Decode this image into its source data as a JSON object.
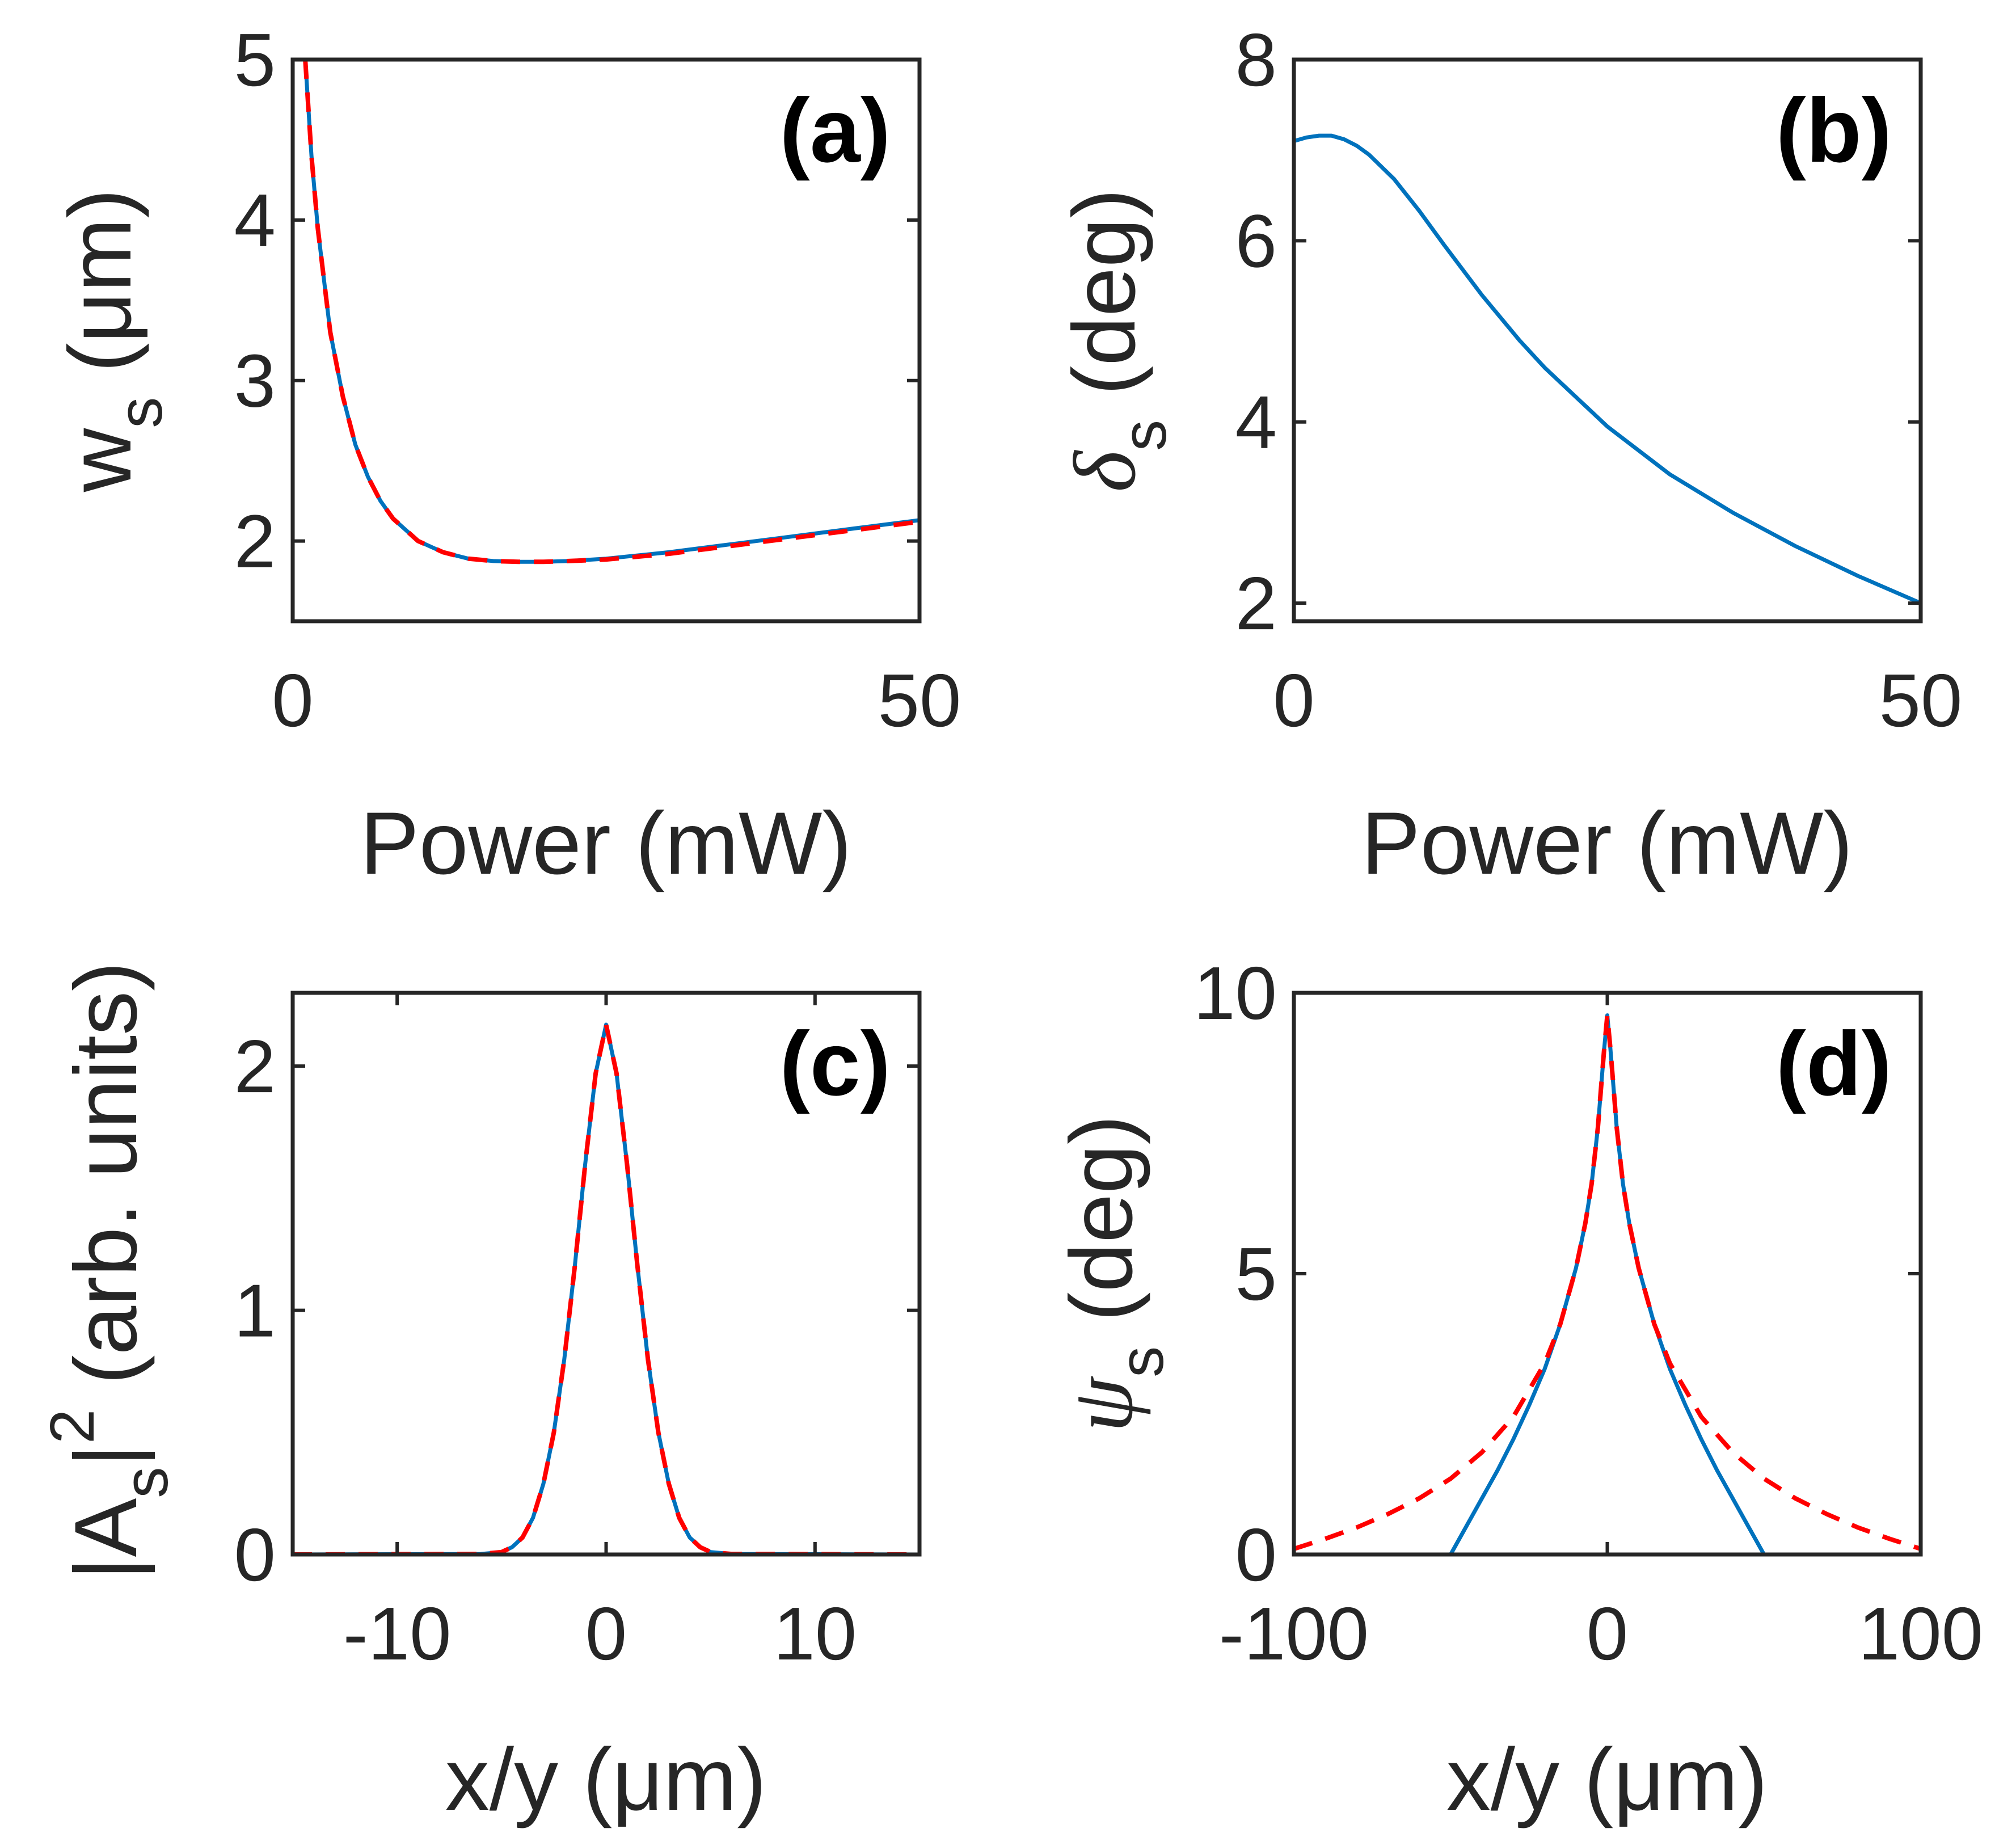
{
  "colors": {
    "blue": "#0072BD",
    "red": "#FF0000",
    "axes": "#262626"
  },
  "chart_data": [
    {
      "panel": "a",
      "type": "line",
      "tag": "(a)",
      "xlabel": "Power (mW)",
      "ylabel": {
        "main": "w",
        "sub": "s",
        "unit": " (μm)"
      },
      "xlim": [
        0,
        50
      ],
      "ylim": [
        1.5,
        5
      ],
      "xticks": [
        0,
        50
      ],
      "xtick_labels": [
        "0",
        "50"
      ],
      "yticks": [
        2,
        3,
        4,
        5
      ],
      "ytick_labels": [
        "2",
        "3",
        "4",
        "5"
      ],
      "series": [
        {
          "style": "solid",
          "color": "#0072BD",
          "x": [
            1,
            1.5,
            2,
            3,
            4,
            5,
            6,
            7,
            8,
            10,
            12,
            14,
            16,
            18,
            20,
            22,
            25,
            30,
            35,
            40,
            45,
            50
          ],
          "y": [
            5.0,
            4.4,
            3.95,
            3.3,
            2.9,
            2.6,
            2.4,
            2.25,
            2.14,
            2.0,
            1.93,
            1.89,
            1.875,
            1.87,
            1.87,
            1.875,
            1.89,
            1.93,
            1.98,
            2.03,
            2.08,
            2.13
          ]
        },
        {
          "style": "dashed",
          "color": "#FF0000",
          "x": [
            1,
            1.5,
            2,
            3,
            4,
            5,
            6,
            7,
            8,
            10,
            12,
            14,
            16,
            18,
            20,
            22,
            25,
            30,
            35,
            40,
            45,
            50
          ],
          "y": [
            5.0,
            4.4,
            3.95,
            3.3,
            2.9,
            2.6,
            2.4,
            2.25,
            2.14,
            2.0,
            1.93,
            1.89,
            1.875,
            1.87,
            1.87,
            1.875,
            1.885,
            1.92,
            1.97,
            2.02,
            2.07,
            2.12
          ]
        }
      ]
    },
    {
      "panel": "b",
      "type": "line",
      "tag": "(b)",
      "xlabel": "Power (mW)",
      "ylabel": {
        "main": "δ",
        "sub": "s",
        "unit": " (deg)"
      },
      "xlim": [
        0,
        50
      ],
      "ylim": [
        1.8,
        8
      ],
      "xticks": [
        0,
        50
      ],
      "xtick_labels": [
        "0",
        "50"
      ],
      "yticks": [
        2,
        4,
        6,
        8
      ],
      "ytick_labels": [
        "2",
        "4",
        "6",
        "8"
      ],
      "series": [
        {
          "style": "solid",
          "color": "#0072BD",
          "x": [
            0,
            1,
            2,
            3,
            4,
            5,
            6,
            8,
            10,
            12,
            15,
            18,
            20,
            25,
            30,
            35,
            40,
            45,
            50
          ],
          "y": [
            7.1,
            7.14,
            7.16,
            7.16,
            7.12,
            7.05,
            6.95,
            6.68,
            6.33,
            5.95,
            5.4,
            4.9,
            4.6,
            3.95,
            3.42,
            3.0,
            2.63,
            2.3,
            2.0
          ]
        }
      ]
    },
    {
      "panel": "c",
      "type": "line",
      "tag": "(c)",
      "xlabel": "x/y (μm)",
      "ylabel": {
        "main": "|A",
        "sub": "s",
        "sup": "2",
        "unit": " (arb. units)"
      },
      "xlim": [
        -15,
        15
      ],
      "ylim": [
        0,
        2.3
      ],
      "xticks": [
        -10,
        0,
        10
      ],
      "xtick_labels": [
        "-10",
        "0",
        "10"
      ],
      "yticks": [
        0,
        1,
        2
      ],
      "ytick_labels": [
        "0",
        "1",
        "2"
      ],
      "series": [
        {
          "style": "solid",
          "color": "#0072BD",
          "x": [
            -15,
            -6,
            -5,
            -4.5,
            -4,
            -3.5,
            -3,
            -2.5,
            -2,
            -1.5,
            -1,
            -0.5,
            0,
            0.5,
            1,
            1.5,
            2,
            2.5,
            3,
            3.5,
            4,
            4.5,
            5,
            6,
            15
          ],
          "y": [
            0,
            0.002,
            0.01,
            0.03,
            0.07,
            0.15,
            0.29,
            0.5,
            0.8,
            1.18,
            1.6,
            1.97,
            2.17,
            1.97,
            1.6,
            1.18,
            0.8,
            0.5,
            0.29,
            0.15,
            0.07,
            0.03,
            0.01,
            0.002,
            0
          ]
        },
        {
          "style": "dashed",
          "color": "#FF0000",
          "x": [
            -15,
            -6,
            -5,
            -4.5,
            -4,
            -3.5,
            -3,
            -2.5,
            -2,
            -1.5,
            -1,
            -0.5,
            0,
            0.5,
            1,
            1.5,
            2,
            2.5,
            3,
            3.5,
            4,
            4.5,
            5,
            6,
            15
          ],
          "y": [
            0,
            0.002,
            0.01,
            0.03,
            0.07,
            0.15,
            0.29,
            0.5,
            0.8,
            1.18,
            1.6,
            1.97,
            2.17,
            1.97,
            1.6,
            1.18,
            0.8,
            0.5,
            0.29,
            0.15,
            0.07,
            0.03,
            0.01,
            0.002,
            0
          ]
        }
      ]
    },
    {
      "panel": "d",
      "type": "line",
      "tag": "(d)",
      "xlabel": "x/y (μm)",
      "ylabel": {
        "main": "ψ",
        "sub": "s",
        "unit": " (deg)"
      },
      "xlim": [
        -100,
        100
      ],
      "ylim": [
        0,
        10
      ],
      "xticks": [
        -100,
        0,
        100
      ],
      "xtick_labels": [
        "-100",
        "0",
        "100"
      ],
      "yticks": [
        0,
        5,
        10
      ],
      "ytick_labels": [
        "0",
        "5",
        "10"
      ],
      "series": [
        {
          "style": "solid",
          "color": "#0072BD",
          "x": [
            -50,
            -45,
            -40,
            -35,
            -30,
            -25,
            -20,
            -15,
            -10,
            -7,
            -5,
            -3,
            -2,
            -1,
            0,
            1,
            2,
            3,
            5,
            7,
            10,
            15,
            20,
            25,
            30,
            35,
            40,
            45,
            50
          ],
          "y": [
            0,
            0.5,
            1.0,
            1.5,
            2.05,
            2.65,
            3.3,
            4.1,
            5.1,
            5.9,
            6.6,
            7.6,
            8.3,
            9.0,
            9.6,
            9.0,
            8.3,
            7.6,
            6.6,
            5.9,
            5.1,
            4.1,
            3.3,
            2.65,
            2.05,
            1.5,
            1.0,
            0.5,
            0
          ]
        },
        {
          "style": "dashed",
          "color": "#FF0000",
          "x": [
            -100,
            -90,
            -80,
            -70,
            -60,
            -50,
            -40,
            -30,
            -20,
            -15,
            -10,
            -7,
            -5,
            -3,
            -2,
            -1,
            0,
            1,
            2,
            3,
            5,
            7,
            10,
            15,
            20,
            30,
            40,
            50,
            60,
            70,
            80,
            90,
            100
          ],
          "y": [
            0.1,
            0.28,
            0.48,
            0.72,
            1.0,
            1.35,
            1.82,
            2.45,
            3.4,
            4.1,
            5.1,
            5.9,
            6.6,
            7.6,
            8.3,
            9.0,
            9.6,
            9.0,
            8.3,
            7.6,
            6.6,
            5.9,
            5.1,
            4.1,
            3.4,
            2.45,
            1.82,
            1.35,
            1.0,
            0.72,
            0.48,
            0.28,
            0.1
          ]
        }
      ]
    }
  ]
}
